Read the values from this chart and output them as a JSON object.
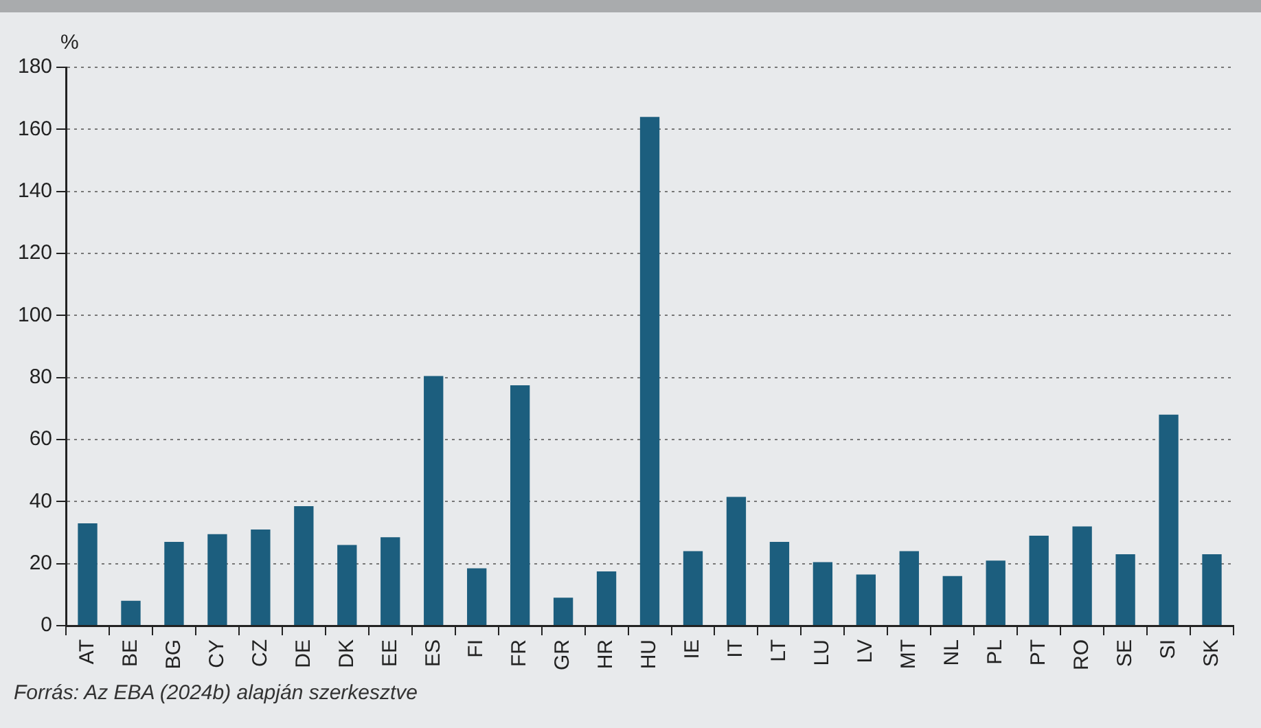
{
  "chart_data": {
    "type": "bar",
    "ylabel": "%",
    "categories": [
      "AT",
      "BE",
      "BG",
      "CY",
      "CZ",
      "DE",
      "DK",
      "EE",
      "ES",
      "FI",
      "FR",
      "GR",
      "HR",
      "HU",
      "IE",
      "IT",
      "LT",
      "LU",
      "LV",
      "MT",
      "NL",
      "PL",
      "PT",
      "RO",
      "SE",
      "SI",
      "SK"
    ],
    "values": [
      33,
      8,
      27,
      29.5,
      31,
      38.5,
      26,
      28.5,
      80.5,
      18.5,
      77.5,
      9,
      17.5,
      164,
      24,
      41.5,
      27,
      20.5,
      16.5,
      24,
      16,
      21,
      29,
      32,
      23,
      68,
      23
    ],
    "color": "#1c5e7e",
    "ylim": [
      0,
      180
    ],
    "yticks": [
      0,
      20,
      40,
      60,
      80,
      100,
      120,
      140,
      160,
      180
    ],
    "grid": "y",
    "annotations": [
      "Forrás: Az EBA (2024b) alapján szerkesztve"
    ]
  }
}
